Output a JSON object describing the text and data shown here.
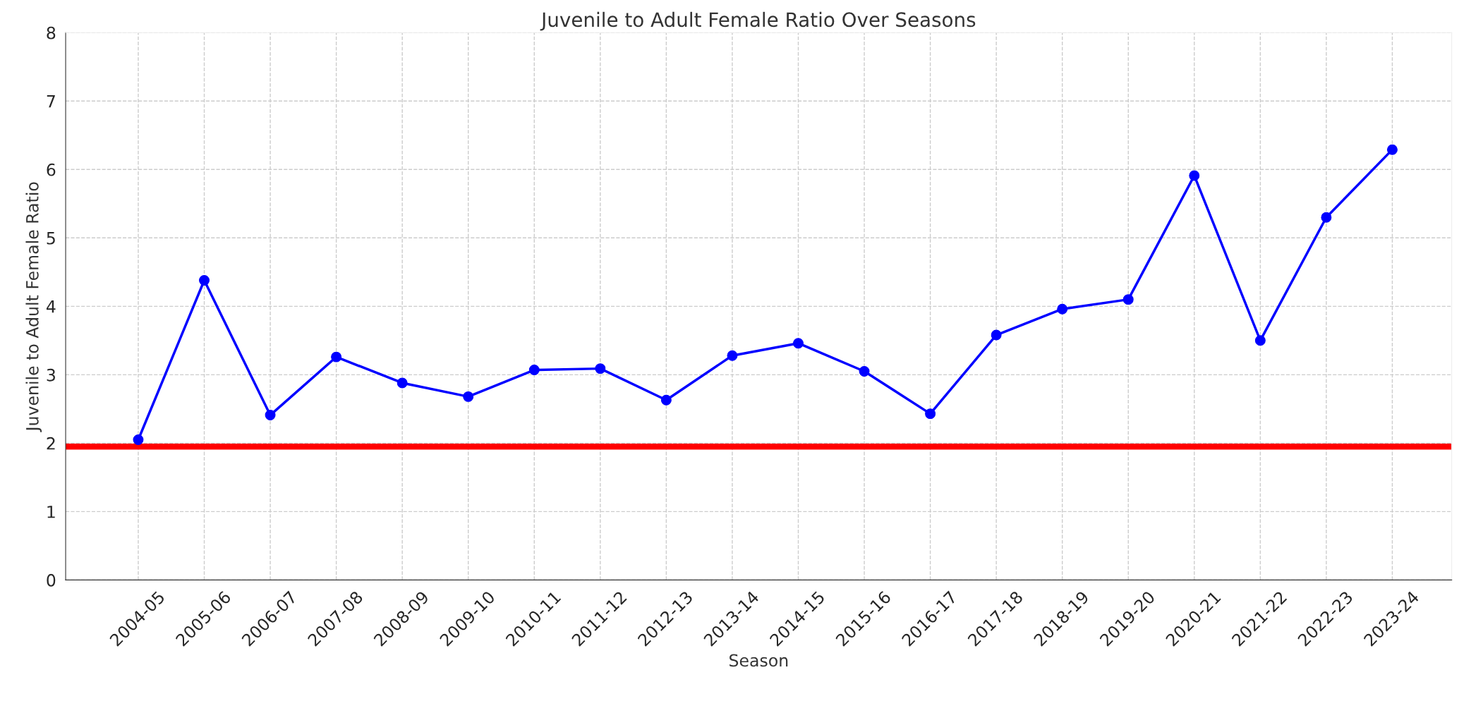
{
  "chart_data": {
    "type": "line",
    "title": "Juvenile to Adult Female Ratio Over Seasons",
    "xlabel": "Season",
    "ylabel": "Juvenile to Adult Female Ratio",
    "categories": [
      "2004-05",
      "2005-06",
      "2006-07",
      "2007-08",
      "2008-09",
      "2009-10",
      "2010-11",
      "2011-12",
      "2012-13",
      "2013-14",
      "2014-15",
      "2015-16",
      "2016-17",
      "2017-18",
      "2018-19",
      "2019-20",
      "2020-21",
      "2021-22",
      "2022-23",
      "2023-24"
    ],
    "series": [
      {
        "color": "#0000ff",
        "values": [
          2.05,
          4.38,
          2.41,
          3.26,
          2.88,
          2.68,
          3.07,
          3.09,
          2.63,
          3.28,
          3.46,
          3.05,
          2.43,
          3.58,
          3.96,
          4.1,
          5.91,
          3.5,
          5.3,
          6.29
        ]
      }
    ],
    "marker": "circle",
    "line_style": "solid",
    "ref_lines": [
      {
        "axis": "y",
        "value": 1.95,
        "color": "#ff0000"
      }
    ],
    "ylim": [
      0,
      8
    ],
    "yticks": [
      0,
      1,
      2,
      3,
      4,
      5,
      6,
      7,
      8
    ],
    "grid": true
  }
}
